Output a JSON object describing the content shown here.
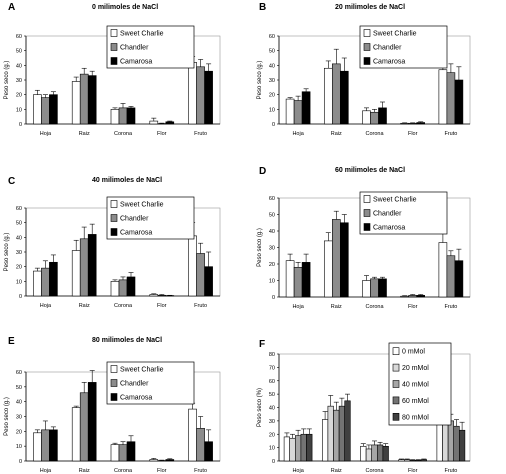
{
  "chart_data": [
    {
      "type": "bar",
      "panel_letter": "A",
      "title": "0 milimoles de NaCl",
      "ylabel": "Peso seco (g.)",
      "ylim": [
        0,
        60
      ],
      "yticks": [
        0,
        10,
        20,
        30,
        40,
        50,
        60
      ],
      "categories": [
        "Hoja",
        "Raiz",
        "Corona",
        "Flor",
        "Fruto"
      ],
      "series": [
        {
          "name": "Sweet Charlie",
          "values": [
            20,
            29,
            10,
            2,
            42
          ],
          "errors": [
            3,
            3,
            1,
            2,
            4
          ]
        },
        {
          "name": "Chandler",
          "values": [
            18,
            34,
            11,
            0.3,
            39
          ],
          "errors": [
            2,
            4,
            3,
            0.3,
            5
          ]
        },
        {
          "name": "Camarosa",
          "values": [
            20,
            33,
            11,
            1.5,
            36
          ],
          "errors": [
            2,
            3,
            1,
            0.5,
            5
          ]
        }
      ]
    },
    {
      "type": "bar",
      "panel_letter": "B",
      "title": "20 milimoles de NaCl",
      "ylabel": "Peso seco (g.)",
      "ylim": [
        0,
        60
      ],
      "yticks": [
        0,
        10,
        20,
        30,
        40,
        50,
        60
      ],
      "categories": [
        "Hoja",
        "Raiz",
        "Corona",
        "Flor",
        "Fruto"
      ],
      "series": [
        {
          "name": "Sweet Charlie",
          "values": [
            17,
            38,
            9,
            0.5,
            37
          ],
          "errors": [
            1,
            5,
            2,
            0.3,
            8
          ]
        },
        {
          "name": "Chandler",
          "values": [
            16,
            41,
            8,
            0.5,
            35
          ],
          "errors": [
            3,
            10,
            2,
            0.3,
            6
          ]
        },
        {
          "name": "Camarosa",
          "values": [
            22,
            36,
            11,
            1,
            30
          ],
          "errors": [
            2,
            9,
            4,
            0.5,
            9
          ]
        }
      ]
    },
    {
      "type": "bar",
      "panel_letter": "C",
      "title": "40 milimoles de NaCl",
      "ylabel": "Peso seco (g.)",
      "ylim": [
        0,
        60
      ],
      "yticks": [
        0,
        10,
        20,
        30,
        40,
        50,
        60
      ],
      "categories": [
        "Hoja",
        "Raiz",
        "Corona",
        "Flor",
        "Fruto"
      ],
      "series": [
        {
          "name": "Sweet Charlie",
          "values": [
            17,
            31,
            10,
            1,
            41
          ],
          "errors": [
            2,
            7,
            1,
            0.5,
            9
          ]
        },
        {
          "name": "Chandler",
          "values": [
            19,
            39,
            11,
            0.5,
            29
          ],
          "errors": [
            5,
            8,
            2,
            0.5,
            7
          ]
        },
        {
          "name": "Camarosa",
          "values": [
            23,
            42,
            13,
            0.3,
            20
          ],
          "errors": [
            5,
            7,
            3,
            0.2,
            10
          ]
        }
      ]
    },
    {
      "type": "bar",
      "panel_letter": "D",
      "title": "60 milimoles de NaCl",
      "ylabel": "Peso seco (g.)",
      "ylim": [
        0,
        60
      ],
      "yticks": [
        0,
        10,
        20,
        30,
        40,
        50,
        60
      ],
      "categories": [
        "Hoja",
        "Raiz",
        "Corona",
        "Flor",
        "Fruto"
      ],
      "series": [
        {
          "name": "Sweet Charlie",
          "values": [
            22,
            34,
            10,
            0.5,
            33
          ],
          "errors": [
            4,
            5,
            3,
            0.3,
            8
          ]
        },
        {
          "name": "Chandler",
          "values": [
            18,
            47,
            11,
            1,
            25
          ],
          "errors": [
            3,
            5,
            1,
            0.5,
            3
          ]
        },
        {
          "name": "Camarosa",
          "values": [
            21,
            45,
            11,
            1,
            22
          ],
          "errors": [
            5,
            5,
            1,
            0.5,
            7
          ]
        }
      ]
    },
    {
      "type": "bar",
      "panel_letter": "E",
      "title": "80 milimoles de NaCl",
      "ylabel": "Peso seco (g.)",
      "ylim": [
        0,
        60
      ],
      "yticks": [
        0,
        10,
        20,
        30,
        40,
        50,
        60
      ],
      "categories": [
        "Hoja",
        "Raiz",
        "Corona",
        "Flor",
        "Fruto"
      ],
      "series": [
        {
          "name": "Sweet Charlie",
          "values": [
            19,
            36,
            11,
            1,
            35
          ],
          "errors": [
            2,
            1,
            1,
            0.8,
            4
          ]
        },
        {
          "name": "Chandler",
          "values": [
            21,
            46,
            11,
            0.3,
            22
          ],
          "errors": [
            6,
            7,
            2,
            0.3,
            8
          ]
        },
        {
          "name": "Camarosa",
          "values": [
            21,
            53,
            13,
            1,
            13
          ],
          "errors": [
            2,
            8,
            4,
            0.5,
            8
          ]
        }
      ]
    },
    {
      "type": "bar",
      "panel_letter": "F",
      "title": "",
      "ylabel": "Peso seco (%)",
      "ylim": [
        0,
        80
      ],
      "yticks": [
        0,
        10,
        20,
        30,
        40,
        50,
        60,
        70,
        80
      ],
      "categories": [
        "Hoja",
        "Raiz",
        "Corona",
        "Flor",
        "Fruto"
      ],
      "series": [
        {
          "name": "0 mMol",
          "values": [
            18,
            31,
            11,
            1,
            39
          ],
          "errors": [
            3,
            6,
            2,
            0.5,
            4
          ]
        },
        {
          "name": "20 mMol",
          "values": [
            17,
            41,
            9,
            1,
            34
          ],
          "errors": [
            3,
            8,
            3,
            0.5,
            5
          ]
        },
        {
          "name": "40 mMol",
          "values": [
            19,
            38,
            12,
            0.5,
            30
          ],
          "errors": [
            4,
            6,
            3,
            0.5,
            5
          ]
        },
        {
          "name": "60 mMol",
          "values": [
            20,
            41,
            12,
            0.5,
            26
          ],
          "errors": [
            4,
            6,
            2,
            0.5,
            5
          ]
        },
        {
          "name": "80 mMol",
          "values": [
            20,
            45,
            11,
            1,
            23
          ],
          "errors": [
            4,
            5,
            2,
            0.5,
            6
          ]
        }
      ]
    }
  ]
}
